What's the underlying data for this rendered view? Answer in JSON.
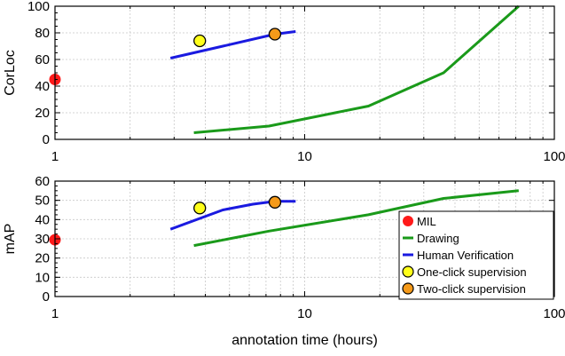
{
  "chart_data": [
    {
      "type": "line",
      "panel": "top",
      "title": "",
      "xlabel": "",
      "ylabel": "CorLoc",
      "xscale": "log",
      "xlim": [
        1,
        100
      ],
      "ylim": [
        0,
        100
      ],
      "xticks": [
        1,
        10,
        100
      ],
      "xtick_labels": [
        "1",
        "10",
        "100"
      ],
      "yticks": [
        0,
        20,
        40,
        60,
        80,
        100
      ],
      "ytick_labels": [
        "0",
        "20",
        "40",
        "60",
        "80",
        "100"
      ],
      "grid": true,
      "legend": null,
      "series": [
        {
          "key": "drawing",
          "kind": "line",
          "color": "#1a9a1a",
          "x": [
            3.6,
            7.2,
            18,
            36,
            72
          ],
          "y": [
            5,
            10,
            25,
            50,
            100
          ]
        },
        {
          "key": "human_verification",
          "kind": "line",
          "color": "#1a1ae0",
          "x": [
            2.9,
            4.7,
            7.6,
            9.2
          ],
          "y": [
            61,
            70,
            79,
            81
          ]
        },
        {
          "key": "mil",
          "kind": "marker",
          "color": "#ff1a1a",
          "x": [
            1
          ],
          "y": [
            45
          ]
        },
        {
          "key": "one_click",
          "kind": "marker",
          "color": "#ffff1a",
          "x": [
            3.8
          ],
          "y": [
            74
          ]
        },
        {
          "key": "two_click",
          "kind": "marker",
          "color": "#f59a1a",
          "x": [
            7.6
          ],
          "y": [
            79
          ]
        }
      ]
    },
    {
      "type": "line",
      "panel": "bottom",
      "title": "",
      "xlabel": "annotation time (hours)",
      "ylabel": "mAP",
      "xscale": "log",
      "xlim": [
        1,
        100
      ],
      "ylim": [
        0,
        60
      ],
      "xticks": [
        1,
        10,
        100
      ],
      "xtick_labels": [
        "1",
        "10",
        "100"
      ],
      "yticks": [
        0,
        10,
        20,
        30,
        40,
        50,
        60
      ],
      "ytick_labels": [
        "0",
        "10",
        "20",
        "30",
        "40",
        "50",
        "60"
      ],
      "grid": true,
      "legend": {
        "placement": "bottom-right",
        "entries": [
          {
            "key": "mil",
            "label": "MIL",
            "kind": "marker",
            "color": "#ff1a1a"
          },
          {
            "key": "drawing",
            "label": "Drawing",
            "kind": "line",
            "color": "#1a9a1a"
          },
          {
            "key": "human_verification",
            "label": "Human Verification",
            "kind": "line",
            "color": "#1a1ae0"
          },
          {
            "key": "one_click",
            "label": "One-click supervision",
            "kind": "marker",
            "color": "#ffff1a"
          },
          {
            "key": "two_click",
            "label": "Two-click supervision",
            "kind": "marker",
            "color": "#f59a1a"
          }
        ]
      },
      "series": [
        {
          "key": "drawing",
          "kind": "line",
          "color": "#1a9a1a",
          "x": [
            3.6,
            7.2,
            18,
            36,
            72
          ],
          "y": [
            26.5,
            34,
            42.5,
            51,
            55
          ]
        },
        {
          "key": "human_verification",
          "kind": "line",
          "color": "#1a1ae0",
          "x": [
            2.9,
            4.7,
            6.2,
            7.6,
            9.2
          ],
          "y": [
            35,
            45,
            48,
            49.5,
            49.5
          ]
        },
        {
          "key": "mil",
          "kind": "marker",
          "color": "#ff1a1a",
          "x": [
            1
          ],
          "y": [
            29.5
          ]
        },
        {
          "key": "one_click",
          "kind": "marker",
          "color": "#ffff1a",
          "x": [
            3.8
          ],
          "y": [
            46
          ]
        },
        {
          "key": "two_click",
          "kind": "marker",
          "color": "#f59a1a",
          "x": [
            7.6
          ],
          "y": [
            49
          ]
        }
      ]
    }
  ]
}
